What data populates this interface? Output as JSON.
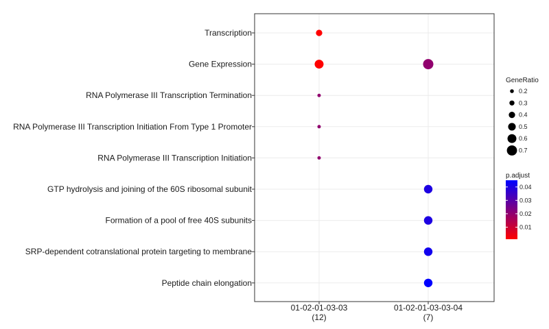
{
  "chart_data": {
    "type": "scatter",
    "title": "",
    "xlabel": "",
    "ylabel": "",
    "grid": true,
    "legend_placement": "right",
    "x_categories": [
      {
        "name": "01-02-01-03-03",
        "count": "(12)"
      },
      {
        "name": "01-02-01-03-03-04",
        "count": "(7)"
      }
    ],
    "y_categories": [
      "Transcription",
      "Gene Expression",
      "RNA Polymerase III Transcription Termination",
      "RNA Polymerase III Transcription Initiation From Type 1 Promoter",
      "RNA Polymerase III Transcription Initiation",
      "GTP hydrolysis and joining of the 60S ribosomal subunit",
      "Formation of a pool of free 40S subunits",
      "SRP-dependent cotranslational protein targeting to membrane",
      "Peptide chain elongation"
    ],
    "points": [
      {
        "x": "01-02-01-03-03",
        "y": "Transcription",
        "gene_ratio": 0.4,
        "p_adjust": 0.001
      },
      {
        "x": "01-02-01-03-03",
        "y": "Gene Expression",
        "gene_ratio": 0.6,
        "p_adjust": 0.001
      },
      {
        "x": "01-02-01-03-03",
        "y": "RNA Polymerase III Transcription Termination",
        "gene_ratio": 0.17,
        "p_adjust": 0.02
      },
      {
        "x": "01-02-01-03-03",
        "y": "RNA Polymerase III Transcription Initiation From Type 1 Promoter",
        "gene_ratio": 0.17,
        "p_adjust": 0.02
      },
      {
        "x": "01-02-01-03-03",
        "y": "RNA Polymerase III Transcription Initiation",
        "gene_ratio": 0.17,
        "p_adjust": 0.02
      },
      {
        "x": "01-02-01-03-03-04",
        "y": "Gene Expression",
        "gene_ratio": 0.71,
        "p_adjust": 0.02
      },
      {
        "x": "01-02-01-03-03-04",
        "y": "GTP hydrolysis and joining of the 60S ribosomal subunit",
        "gene_ratio": 0.57,
        "p_adjust": 0.04
      },
      {
        "x": "01-02-01-03-03-04",
        "y": "Formation of a pool of free 40S subunits",
        "gene_ratio": 0.57,
        "p_adjust": 0.04
      },
      {
        "x": "01-02-01-03-03-04",
        "y": "SRP-dependent cotranslational protein targeting to membrane",
        "gene_ratio": 0.57,
        "p_adjust": 0.042
      },
      {
        "x": "01-02-01-03-03-04",
        "y": "Peptide chain elongation",
        "gene_ratio": 0.57,
        "p_adjust": 0.045
      }
    ],
    "size_legend": {
      "title": "GeneRatio",
      "values": [
        0.2,
        0.3,
        0.4,
        0.5,
        0.6,
        0.7
      ],
      "labels": [
        "0.2",
        "0.3",
        "0.4",
        "0.5",
        "0.6",
        "0.7"
      ]
    },
    "color_legend": {
      "title": "p.adjust",
      "range": [
        0.001,
        0.045
      ],
      "ticks": [
        0.04,
        0.03,
        0.02,
        0.01
      ],
      "tick_labels": [
        "0.04",
        "0.03",
        "0.02",
        "0.01"
      ],
      "low_color": "#ff0000",
      "high_color": "#0000ff"
    }
  }
}
